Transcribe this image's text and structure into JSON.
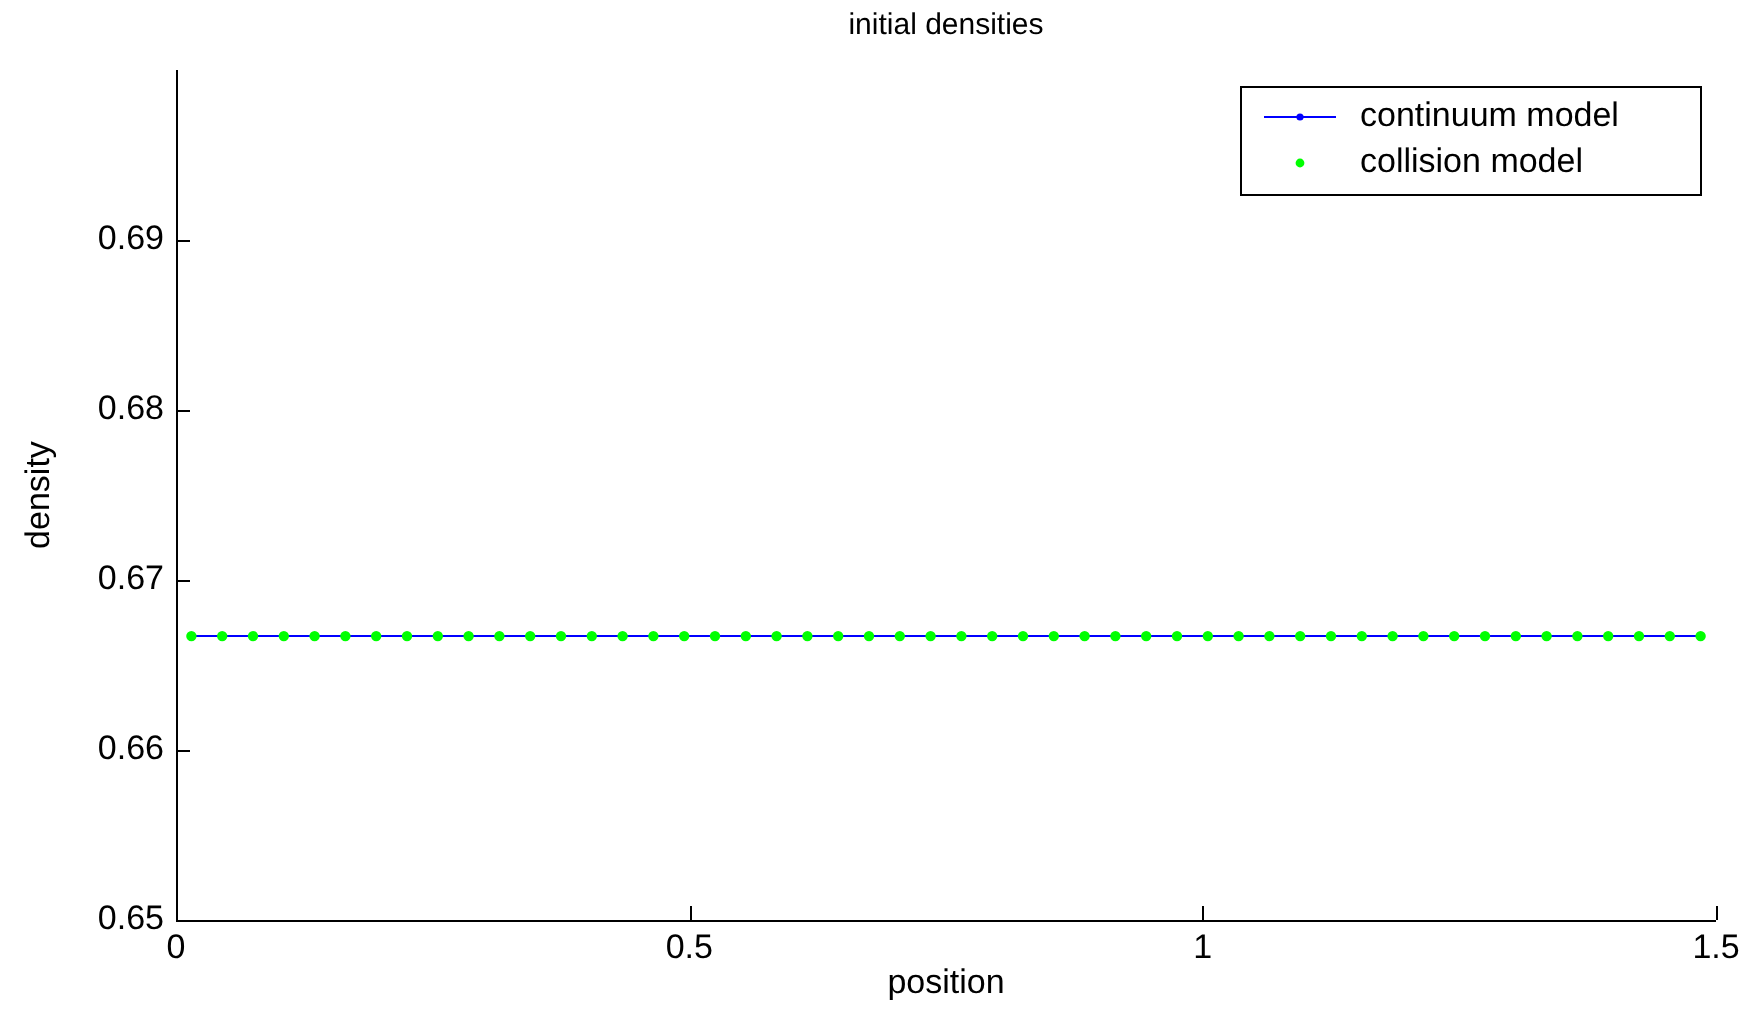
{
  "chart_data": {
    "type": "line",
    "title": "initial densities",
    "xlabel": "position",
    "ylabel": "density",
    "x": [
      0.015,
      0.045,
      0.075,
      0.105,
      0.135,
      0.165,
      0.195,
      0.225,
      0.255,
      0.285,
      0.315,
      0.345,
      0.375,
      0.405,
      0.435,
      0.465,
      0.495,
      0.525,
      0.555,
      0.585,
      0.615,
      0.645,
      0.675,
      0.705,
      0.735,
      0.765,
      0.795,
      0.825,
      0.855,
      0.885,
      0.915,
      0.945,
      0.975,
      1.005,
      1.035,
      1.065,
      1.095,
      1.125,
      1.155,
      1.185,
      1.215,
      1.245,
      1.275,
      1.305,
      1.335,
      1.365,
      1.395,
      1.425,
      1.455,
      1.485
    ],
    "series": [
      {
        "name": "continuum model",
        "type": "line",
        "color": "#0000ff",
        "marker": "circle",
        "values": [
          0.6667,
          0.6667,
          0.6667,
          0.6667,
          0.6667,
          0.6667,
          0.6667,
          0.6667,
          0.6667,
          0.6667,
          0.6667,
          0.6667,
          0.6667,
          0.6667,
          0.6667,
          0.6667,
          0.6667,
          0.6667,
          0.6667,
          0.6667,
          0.6667,
          0.6667,
          0.6667,
          0.6667,
          0.6667,
          0.6667,
          0.6667,
          0.6667,
          0.6667,
          0.6667,
          0.6667,
          0.6667,
          0.6667,
          0.6667,
          0.6667,
          0.6667,
          0.6667,
          0.6667,
          0.6667,
          0.6667,
          0.6667,
          0.6667,
          0.6667,
          0.6667,
          0.6667,
          0.6667,
          0.6667,
          0.6667,
          0.6667,
          0.6667
        ]
      },
      {
        "name": "collision model",
        "type": "scatter",
        "color": "#00ff00",
        "marker": "circle",
        "values": [
          0.6667,
          0.6667,
          0.6667,
          0.6667,
          0.6667,
          0.6667,
          0.6667,
          0.6667,
          0.6667,
          0.6667,
          0.6667,
          0.6667,
          0.6667,
          0.6667,
          0.6667,
          0.6667,
          0.6667,
          0.6667,
          0.6667,
          0.6667,
          0.6667,
          0.6667,
          0.6667,
          0.6667,
          0.6667,
          0.6667,
          0.6667,
          0.6667,
          0.6667,
          0.6667,
          0.6667,
          0.6667,
          0.6667,
          0.6667,
          0.6667,
          0.6667,
          0.6667,
          0.6667,
          0.6667,
          0.6667,
          0.6667,
          0.6667,
          0.6667,
          0.6667,
          0.6667,
          0.6667,
          0.6667,
          0.6667,
          0.6667,
          0.6667
        ]
      }
    ],
    "xlim": [
      0,
      1.5
    ],
    "xticks": [
      0,
      0.5,
      1,
      1.5
    ],
    "ylim": [
      0.65,
      0.7
    ],
    "yticks": [
      0.65,
      0.66,
      0.67,
      0.68,
      0.69
    ],
    "grid": false,
    "legend": "top right"
  }
}
